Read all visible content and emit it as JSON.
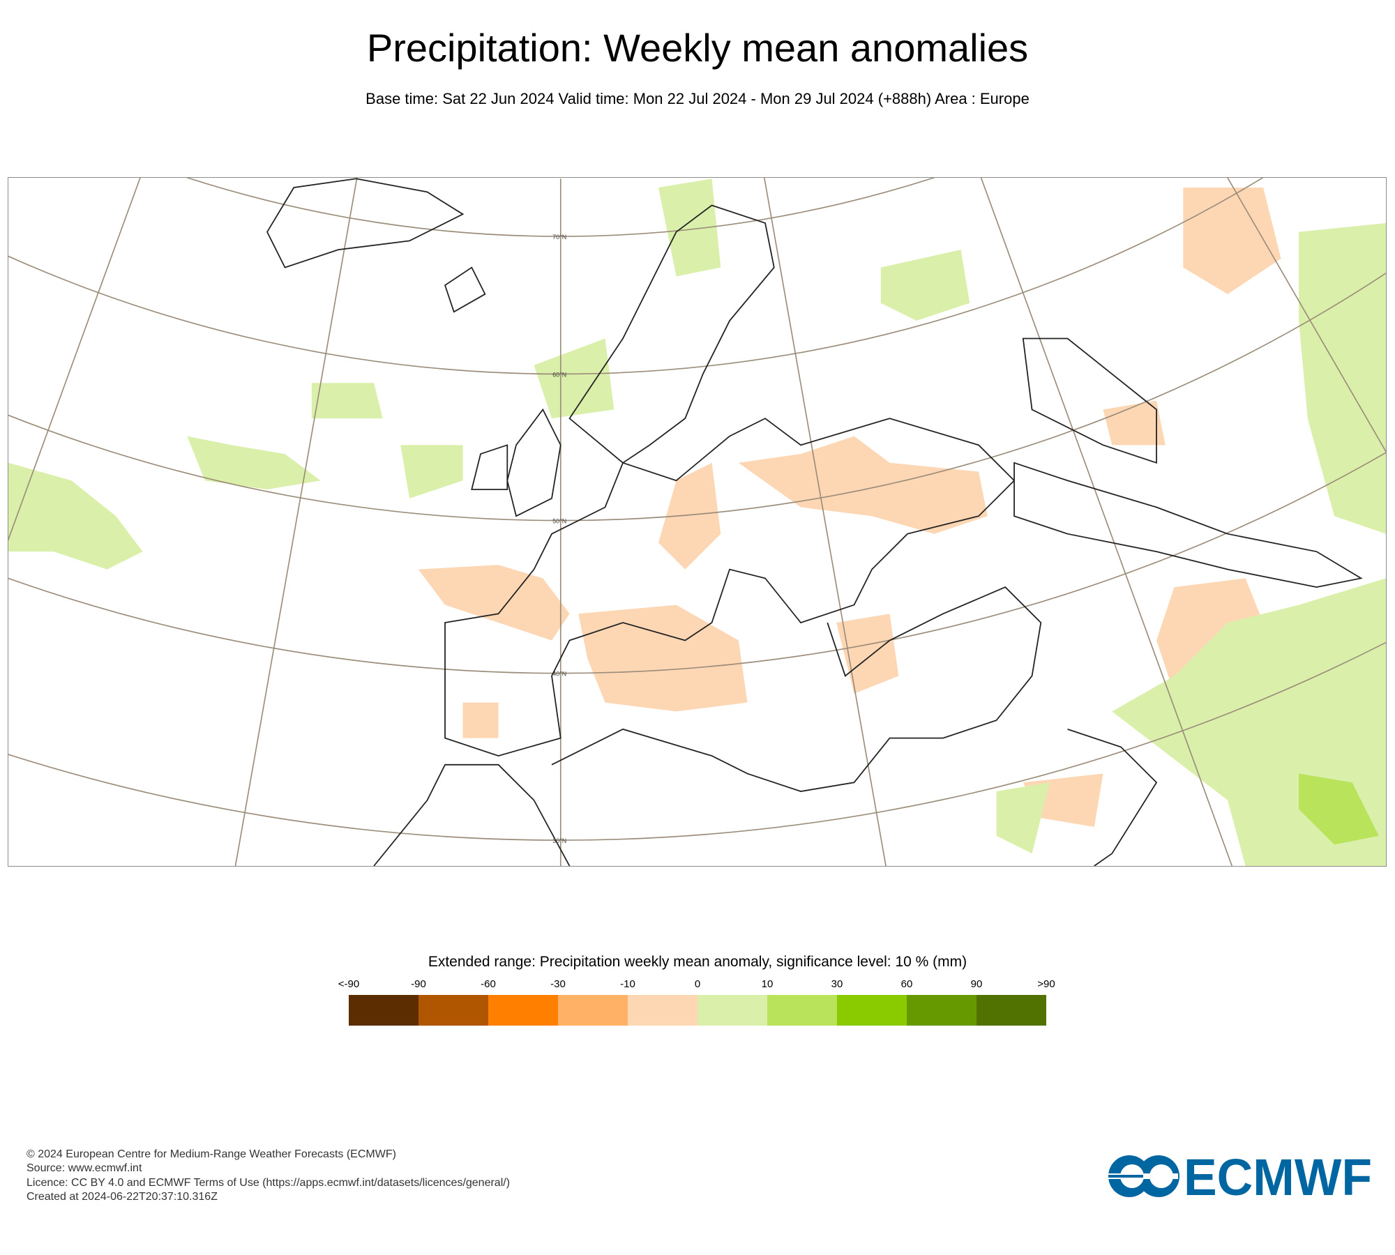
{
  "header": {
    "title": "Precipitation: Weekly mean anomalies",
    "subtitle": "Base time: Sat 22 Jun 2024 Valid time: Mon 22 Jul 2024 - Mon 29 Jul 2024 (+888h) Area : Europe"
  },
  "chart_data": {
    "type": "heatmap",
    "title": "Precipitation: Weekly mean anomalies",
    "area": "Europe",
    "latitude_labels": [
      "70°N",
      "60°N",
      "50°N",
      "40°N",
      "30°N"
    ],
    "legend": {
      "title": "Extended range: Precipitation weekly mean anomaly, significance level: 10 % (mm)",
      "tick_labels": [
        "<-90",
        "-90",
        "-60",
        "-30",
        "-10",
        "0",
        "10",
        "30",
        "60",
        "90",
        ">90"
      ],
      "colors": [
        "#5c2d00",
        "#b05500",
        "#ff8000",
        "#ffb266",
        "#fdd6b4",
        "#daf0aa",
        "#b8e35a",
        "#8acb00",
        "#669900",
        "#527200"
      ]
    }
  },
  "footer": {
    "lines": [
      "© 2024 European Centre for Medium-Range Weather Forecasts (ECMWF)",
      "Source: www.ecmwf.int",
      "Licence: CC BY 4.0 and ECMWF Terms of Use (https://apps.ecmwf.int/datasets/licences/general/)",
      "Created at 2024-06-22T20:37:10.316Z"
    ],
    "logo_text": "ECMWF",
    "logo_color": "#0066a1"
  }
}
